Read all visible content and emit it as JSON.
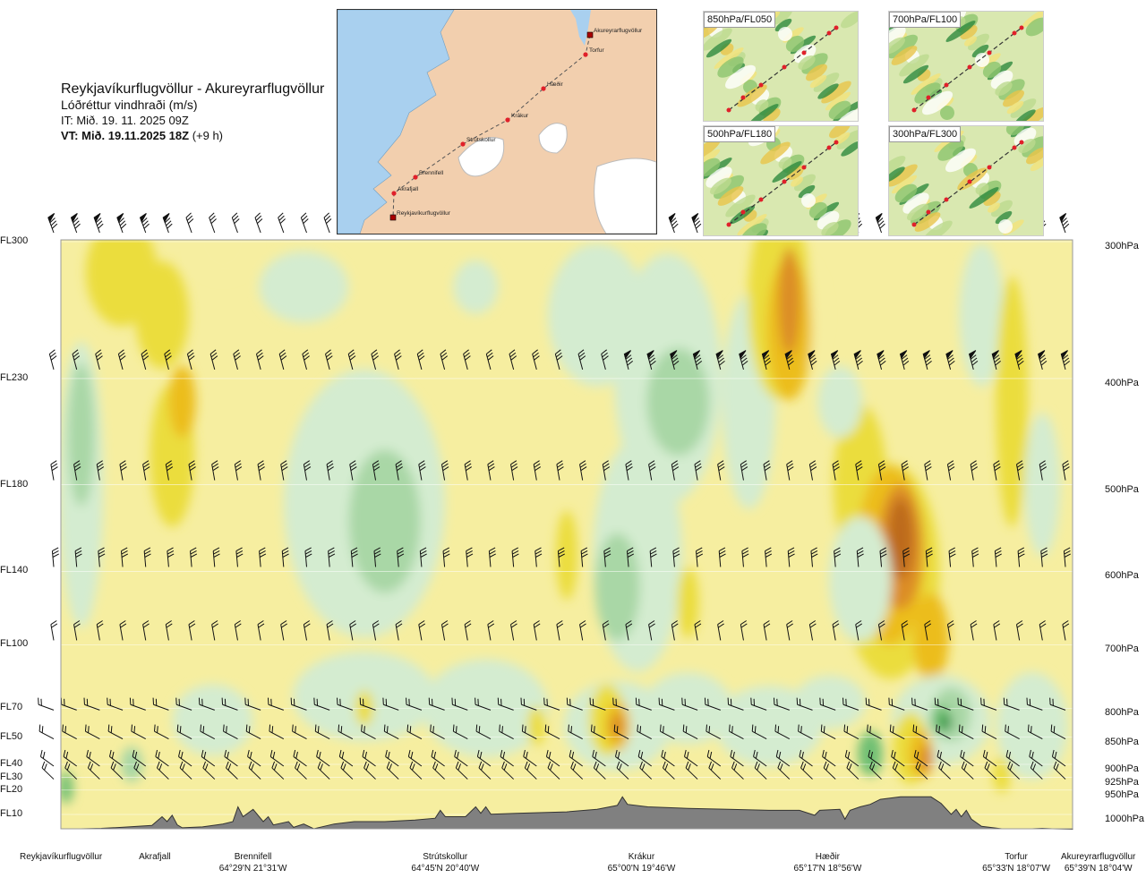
{
  "title": {
    "route": "Reykjavíkurflugvöllur - Akureyrarflugvöllur",
    "variable": "Lóðréttur vindhraði (m/s)",
    "it": "IT: Mið. 19. 11. 2025 09Z",
    "vt_bold": "VT: Mið. 19.11.2025 18Z",
    "vt_rest": " (+9 h)"
  },
  "map_labels": [
    {
      "name": "Akureyrarflugvöllur"
    },
    {
      "name": "Torfur"
    },
    {
      "name": "Hæðir"
    },
    {
      "name": "Krákur"
    },
    {
      "name": "Strútskollur"
    },
    {
      "name": "Brennifell"
    },
    {
      "name": "Akrafjall"
    },
    {
      "name": "Reykjavíkurflugvöllur"
    }
  ],
  "mini_maps": [
    {
      "label": "850hPa/FL050"
    },
    {
      "label": "700hPa/FL100"
    },
    {
      "label": "500hPa/FL180"
    },
    {
      "label": "300hPa/FL300"
    }
  ],
  "chart_data": {
    "type": "heatmap",
    "title": "Lóðréttur vindhraði (m/s)",
    "flight_levels": [
      "FL300",
      "FL230",
      "FL180",
      "FL140",
      "FL100",
      "FL70",
      "FL50",
      "FL40",
      "FL30",
      "FL20",
      "FL10"
    ],
    "pressure_levels": [
      "300hPa",
      "400hPa",
      "500hPa",
      "600hPa",
      "700hPa",
      "800hPa",
      "850hPa",
      "900hPa",
      "925hPa",
      "950hPa",
      "1000hPa"
    ],
    "pressure_values": [
      300,
      400,
      500,
      600,
      700,
      800,
      850,
      900,
      925,
      950,
      1000
    ],
    "locations": [
      {
        "name": "Reykjavíkurflugvöllur",
        "coord": "",
        "frac": 0.0
      },
      {
        "name": "Akrafjall",
        "coord": "",
        "frac": 0.093
      },
      {
        "name": "Brennifell",
        "coord": "64°29'N 21°31'W",
        "frac": 0.19
      },
      {
        "name": "Strútskollur",
        "coord": "64°45'N 20°40'W",
        "frac": 0.38
      },
      {
        "name": "Krákur",
        "coord": "65°00'N 19°46'W",
        "frac": 0.574
      },
      {
        "name": "Hæðir",
        "coord": "65°17'N 18°56'W",
        "frac": 0.758
      },
      {
        "name": "Torfur",
        "coord": "65°33'N 18°07'W",
        "frac": 0.955
      },
      {
        "name": "Akureyrarflugvöllur",
        "coord": "65°39'N 18°04'W",
        "frac": 1.0
      }
    ],
    "colors": {
      "strong_down": "#1f8a3a",
      "mid_down": "#6fbf73",
      "weak_down": "#a9d7a6",
      "faint_down": "#d4ecd0",
      "neutral": "#fbfadb",
      "faint_up": "#f6eea0",
      "weak_up": "#ebdd3d",
      "mid_up": "#ecbd1b",
      "strong_up": "#dc8d25",
      "very_strong_up": "#bd6a1e",
      "terrain": "#808080"
    },
    "x_range": [
      0,
      1
    ],
    "y_range_hPa": [
      300,
      1000
    ],
    "grid": true
  }
}
